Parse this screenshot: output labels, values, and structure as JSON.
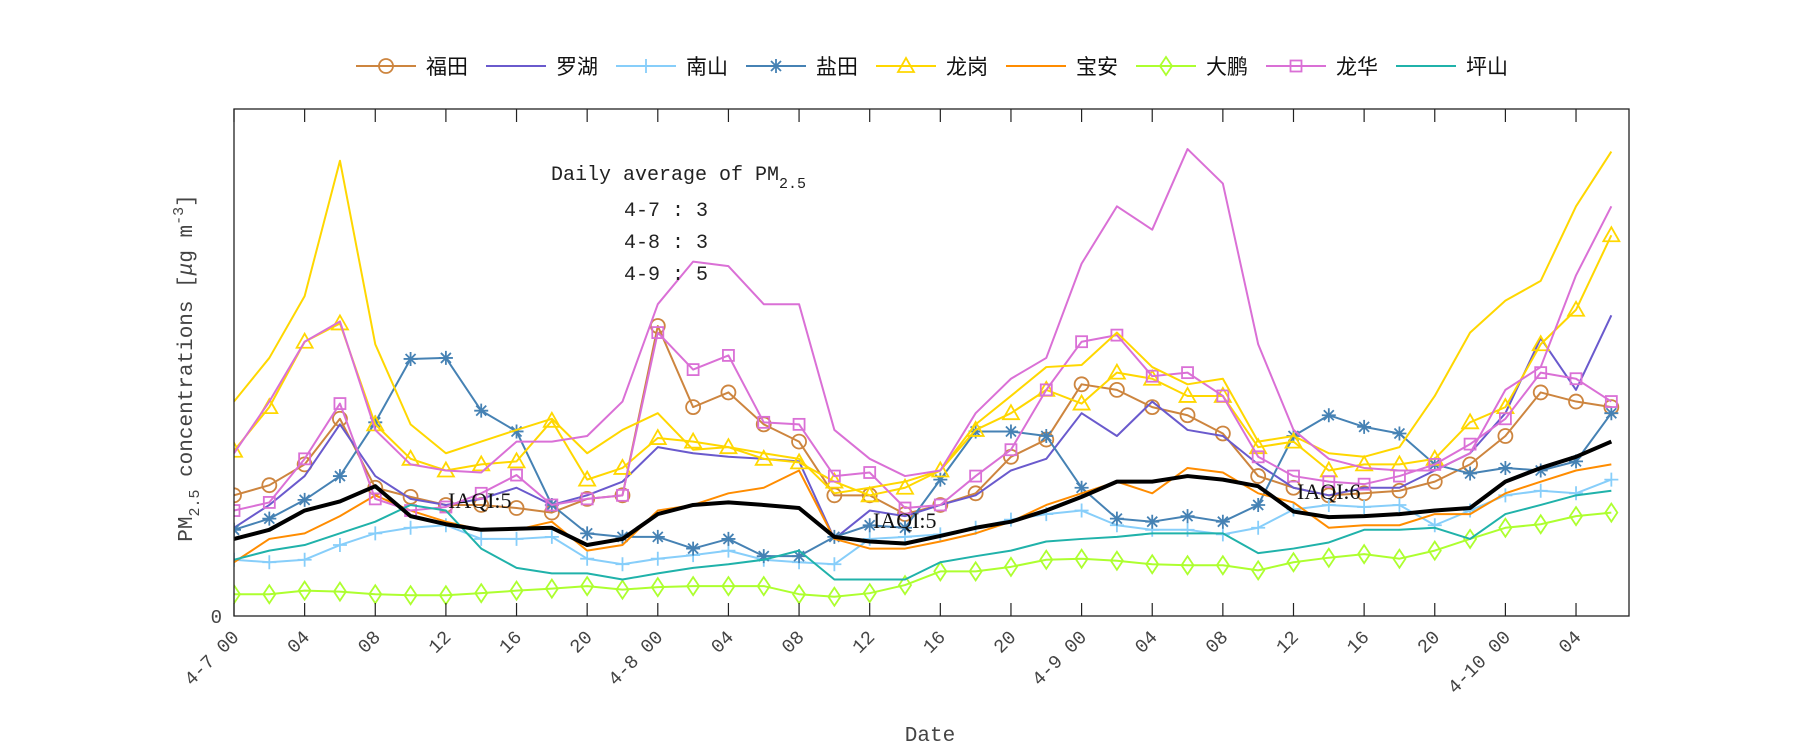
{
  "chart_data": {
    "type": "line",
    "xlabel": "Date",
    "ylabel": "PM2.5 concentrations [μg m-3]",
    "ylabel_parts": {
      "pm": "PM",
      "sub": "2.5",
      "rest": " concentrations [",
      "mu": "μ",
      "unit": "g m",
      "sup": "-3",
      "close": "]"
    },
    "y_tick_labels": [
      "0"
    ],
    "ylim": [
      0,
      100
    ],
    "xlim": [
      "4-7 00",
      "4-10 07"
    ],
    "x_tick_labels": [
      "4-7 00",
      "04",
      "08",
      "12",
      "16",
      "20",
      "4-8 00",
      "04",
      "08",
      "12",
      "16",
      "20",
      "4-9 00",
      "04",
      "08",
      "12",
      "16",
      "20",
      "4-10 00",
      "04"
    ],
    "x": [
      "4-7 00",
      "4-7 02",
      "4-7 04",
      "4-7 06",
      "4-7 08",
      "4-7 10",
      "4-7 12",
      "4-7 14",
      "4-7 16",
      "4-7 18",
      "4-7 20",
      "4-7 22",
      "4-8 00",
      "4-8 02",
      "4-8 04",
      "4-8 06",
      "4-8 08",
      "4-8 10",
      "4-8 12",
      "4-8 14",
      "4-8 16",
      "4-8 18",
      "4-8 20",
      "4-8 22",
      "4-9 00",
      "4-9 02",
      "4-9 04",
      "4-9 06",
      "4-9 08",
      "4-9 10",
      "4-9 12",
      "4-9 14",
      "4-9 16",
      "4-9 18",
      "4-9 20",
      "4-9 22",
      "4-10 00",
      "4-10 02",
      "4-10 04",
      "4-10 06"
    ],
    "grid": false,
    "legend_placement": "top-outside",
    "series": [
      {
        "name": "福田",
        "color": "#CD853F",
        "marker": "circle",
        "values": [
          23.8,
          25.8,
          29.9,
          38.9,
          25.3,
          23.5,
          21.9,
          21.9,
          21.3,
          20.4,
          23.1,
          23.8,
          57.2,
          41.2,
          44.1,
          37.8,
          34.4,
          23.8,
          23.8,
          20.1,
          21.9,
          24.2,
          31.4,
          34.8,
          45.7,
          44.6,
          41.2,
          39.6,
          36.0,
          27.6,
          25.3,
          23.8,
          24.2,
          24.7,
          26.5,
          29.9,
          35.5,
          44.1,
          42.3,
          41.2
        ]
      },
      {
        "name": "罗湖",
        "color": "#6A5ACD",
        "marker": "none",
        "values": [
          17.4,
          21.9,
          27.6,
          37.8,
          27.6,
          23.1,
          21.9,
          23.1,
          25.3,
          21.9,
          23.8,
          26.5,
          33.3,
          32.1,
          31.4,
          31.0,
          30.5,
          15.2,
          20.8,
          19.7,
          21.9,
          23.8,
          28.7,
          31.0,
          40.0,
          35.5,
          42.3,
          36.7,
          35.5,
          29.9,
          25.3,
          23.8,
          25.3,
          25.3,
          28.7,
          32.1,
          40.0,
          54.8,
          44.6,
          59.3
        ]
      },
      {
        "name": "南山",
        "color": "#87CEFA",
        "marker": "plus",
        "values": [
          11.1,
          10.6,
          11.1,
          14.0,
          16.3,
          17.4,
          17.9,
          15.2,
          15.2,
          15.6,
          11.3,
          10.2,
          11.3,
          12.0,
          12.9,
          11.1,
          10.6,
          10.2,
          15.2,
          15.6,
          16.1,
          17.4,
          19.0,
          20.1,
          20.8,
          17.9,
          17.0,
          17.0,
          16.1,
          17.4,
          21.0,
          21.9,
          21.5,
          21.9,
          17.9,
          20.8,
          23.8,
          24.7,
          24.2,
          26.9
        ]
      },
      {
        "name": "盐田",
        "color": "#4682B4",
        "marker": "asterisk",
        "values": [
          17.0,
          19.2,
          22.9,
          27.6,
          38.2,
          50.7,
          50.9,
          40.5,
          36.4,
          21.9,
          16.3,
          15.6,
          15.6,
          13.3,
          15.2,
          11.8,
          11.8,
          15.6,
          17.9,
          17.4,
          26.9,
          36.4,
          36.4,
          35.5,
          25.3,
          19.2,
          18.6,
          19.7,
          18.6,
          21.9,
          35.5,
          39.6,
          37.3,
          36.0,
          29.9,
          28.1,
          29.2,
          28.7,
          30.5,
          40.0
        ]
      },
      {
        "name": "龙岗",
        "color": "#FFD700",
        "marker": "triangle",
        "values": [
          32.6,
          41.2,
          54.1,
          57.7,
          37.8,
          31.0,
          28.7,
          29.9,
          30.5,
          38.5,
          26.9,
          29.2,
          35.1,
          34.4,
          33.3,
          31.0,
          30.3,
          26.5,
          23.8,
          25.3,
          28.7,
          36.7,
          40.0,
          44.6,
          41.9,
          48.0,
          46.8,
          43.4,
          43.4,
          33.3,
          34.4,
          28.7,
          29.9,
          29.9,
          31.0,
          38.2,
          41.2,
          53.6,
          60.4,
          75.1
        ]
      },
      {
        "name": "宝安",
        "color": "#FF8C00",
        "marker": "none",
        "values": [
          10.6,
          15.2,
          16.3,
          19.7,
          23.8,
          20.8,
          18.6,
          17.0,
          17.0,
          18.6,
          12.9,
          14.0,
          20.8,
          21.9,
          24.2,
          25.3,
          28.7,
          15.2,
          13.3,
          13.3,
          14.7,
          16.3,
          18.6,
          21.9,
          24.2,
          26.5,
          24.2,
          29.2,
          28.3,
          24.2,
          22.4,
          17.4,
          17.9,
          17.9,
          20.1,
          20.1,
          24.2,
          26.5,
          28.7,
          29.9
        ]
      },
      {
        "name": "大鹏",
        "color": "#ADFF2F",
        "marker": "diamond",
        "values": [
          4.3,
          4.3,
          5.0,
          4.8,
          4.3,
          4.1,
          4.1,
          4.5,
          5.0,
          5.4,
          5.9,
          5.2,
          5.7,
          5.9,
          5.9,
          5.9,
          4.3,
          3.8,
          4.5,
          6.1,
          8.8,
          8.8,
          9.7,
          11.1,
          11.3,
          10.9,
          10.2,
          10.0,
          10.0,
          9.0,
          10.6,
          11.5,
          12.2,
          11.3,
          12.9,
          15.2,
          17.4,
          18.1,
          19.7,
          20.4
        ]
      },
      {
        "name": "龙华",
        "color": "#DA70D6",
        "marker": "square",
        "values": [
          20.8,
          22.4,
          31.0,
          41.9,
          23.1,
          20.8,
          21.5,
          24.2,
          27.8,
          21.9,
          23.1,
          23.8,
          55.9,
          48.6,
          51.4,
          38.2,
          37.8,
          27.6,
          28.3,
          21.3,
          21.9,
          27.6,
          32.8,
          44.6,
          54.1,
          55.4,
          47.3,
          48.0,
          43.4,
          31.4,
          27.6,
          26.5,
          26.0,
          27.6,
          29.9,
          33.9,
          38.9,
          48.0,
          46.8,
          42.3
        ]
      },
      {
        "name": "坪山",
        "color": "#20B2AA",
        "marker": "none",
        "values": [
          11.1,
          12.9,
          14.0,
          16.3,
          18.6,
          21.9,
          20.8,
          13.3,
          9.5,
          8.4,
          8.4,
          7.2,
          8.4,
          9.5,
          10.2,
          11.1,
          12.9,
          7.2,
          7.2,
          7.2,
          10.6,
          11.8,
          12.9,
          14.7,
          15.2,
          15.6,
          16.3,
          16.3,
          16.3,
          12.4,
          13.3,
          14.5,
          17.0,
          17.0,
          17.4,
          15.2,
          20.1,
          21.9,
          23.8,
          24.7
        ]
      },
      {
        "color": "#000000",
        "marker": "none",
        "thick": true,
        "values": [
          15.2,
          17.0,
          20.8,
          22.6,
          25.6,
          19.7,
          18.1,
          17.0,
          17.2,
          17.4,
          14.0,
          15.2,
          20.1,
          21.9,
          22.4,
          21.9,
          21.3,
          15.6,
          14.7,
          14.3,
          15.8,
          17.4,
          18.6,
          20.8,
          23.5,
          26.5,
          26.5,
          27.6,
          26.9,
          25.6,
          20.6,
          19.5,
          19.7,
          20.1,
          20.8,
          21.3,
          26.5,
          29.2,
          31.4,
          34.4
        ]
      },
      {
        "color": "#FFD700",
        "marker": "none",
        "values": [
          42.3,
          50.9,
          63.1,
          89.8,
          53.6,
          37.8,
          32.1,
          34.4,
          36.7,
          38.9,
          32.1,
          36.7,
          40.0,
          32.8,
          33.3,
          32.1,
          31.0,
          24.2,
          25.3,
          26.5,
          28.7,
          37.8,
          43.4,
          49.1,
          49.5,
          55.9,
          49.1,
          45.7,
          46.8,
          34.4,
          35.5,
          32.1,
          31.4,
          33.3,
          43.4,
          55.9,
          62.2,
          66.1,
          80.8,
          91.6
        ]
      },
      {
        "color": "#DA70D6",
        "marker": "none",
        "values": [
          32.1,
          42.3,
          54.1,
          58.1,
          36.7,
          29.9,
          28.7,
          28.3,
          34.4,
          34.4,
          35.5,
          42.3,
          61.5,
          69.9,
          69.0,
          61.5,
          61.5,
          36.7,
          31.0,
          27.6,
          28.7,
          40.0,
          46.8,
          50.9,
          69.5,
          80.8,
          76.2,
          92.1,
          85.3,
          53.6,
          36.7,
          31.0,
          29.2,
          28.7,
          28.7,
          32.1,
          44.6,
          49.1,
          67.2,
          80.8
        ]
      }
    ],
    "annotations": {
      "daily_title": "Daily average of PM",
      "daily_title_sub": "2.5",
      "daily_lines": [
        "4-7 : 3",
        "4-8 : 3",
        "4-9 : 5"
      ],
      "iaqi": [
        {
          "text": "IAQI:5",
          "at": "4-7 12"
        },
        {
          "text": "IAQI:5",
          "at": "4-8 12"
        },
        {
          "text": "IAQI:6",
          "at": "4-9 12"
        }
      ]
    }
  }
}
